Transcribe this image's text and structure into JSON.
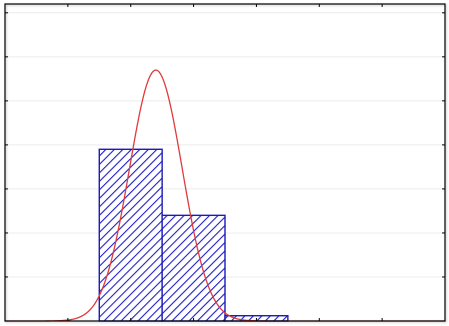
{
  "chart_data": {
    "type": "histogram",
    "title": "",
    "xlabel": "",
    "ylabel": "",
    "xlim": [
      0,
      7
    ],
    "ylim": [
      0,
      7.2
    ],
    "grid": true,
    "legend": "none",
    "bins": [
      {
        "x0": 0.5,
        "x1": 1.5,
        "value": 0
      },
      {
        "x0": 1.5,
        "x1": 2.5,
        "value": 3.9
      },
      {
        "x0": 2.5,
        "x1": 3.5,
        "value": 2.4
      },
      {
        "x0": 3.5,
        "x1": 4.5,
        "value": 0.12
      }
    ],
    "curve": {
      "type": "normal",
      "mean": 2.4,
      "sd": 0.42,
      "peak": 5.7
    },
    "colors": {
      "bar_edge": "#1a1ab8",
      "bar_hatch": "#2020c8",
      "curve": "#e03a3a",
      "grid": "#ececec",
      "frame": "#000000"
    }
  }
}
